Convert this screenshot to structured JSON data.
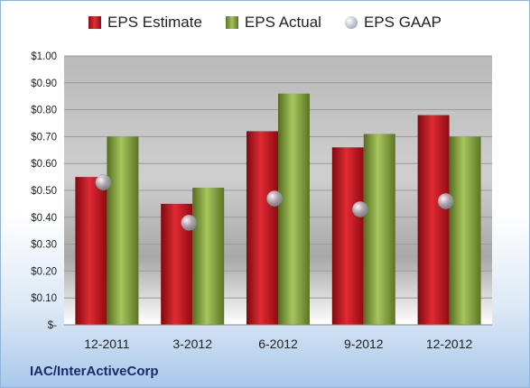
{
  "legend": {
    "estimate_label": "EPS Estimate",
    "actual_label": "EPS Actual",
    "gaap_label": "EPS GAAP"
  },
  "footer": {
    "company": "IAC/InterActiveCorp"
  },
  "colors": {
    "estimate": "#c0141c",
    "actual": "#7e9c35",
    "gaap": "#b8bec8"
  },
  "chart_data": {
    "type": "bar",
    "categories": [
      "12-2011",
      "3-2012",
      "6-2012",
      "9-2012",
      "12-2012"
    ],
    "series": [
      {
        "name": "EPS Estimate",
        "values": [
          0.55,
          0.45,
          0.72,
          0.66,
          0.78
        ]
      },
      {
        "name": "EPS Actual",
        "values": [
          0.7,
          0.51,
          0.86,
          0.71,
          0.7
        ]
      },
      {
        "name": "EPS GAAP",
        "values": [
          0.53,
          0.38,
          0.47,
          0.43,
          0.46
        ]
      }
    ],
    "ylim": [
      0,
      1.0
    ],
    "yticks": [
      "$-",
      "$0.10",
      "$0.20",
      "$0.30",
      "$0.40",
      "$0.50",
      "$0.60",
      "$0.70",
      "$0.80",
      "$0.90",
      "$1.00"
    ],
    "legend_position": "top",
    "grid": true
  }
}
